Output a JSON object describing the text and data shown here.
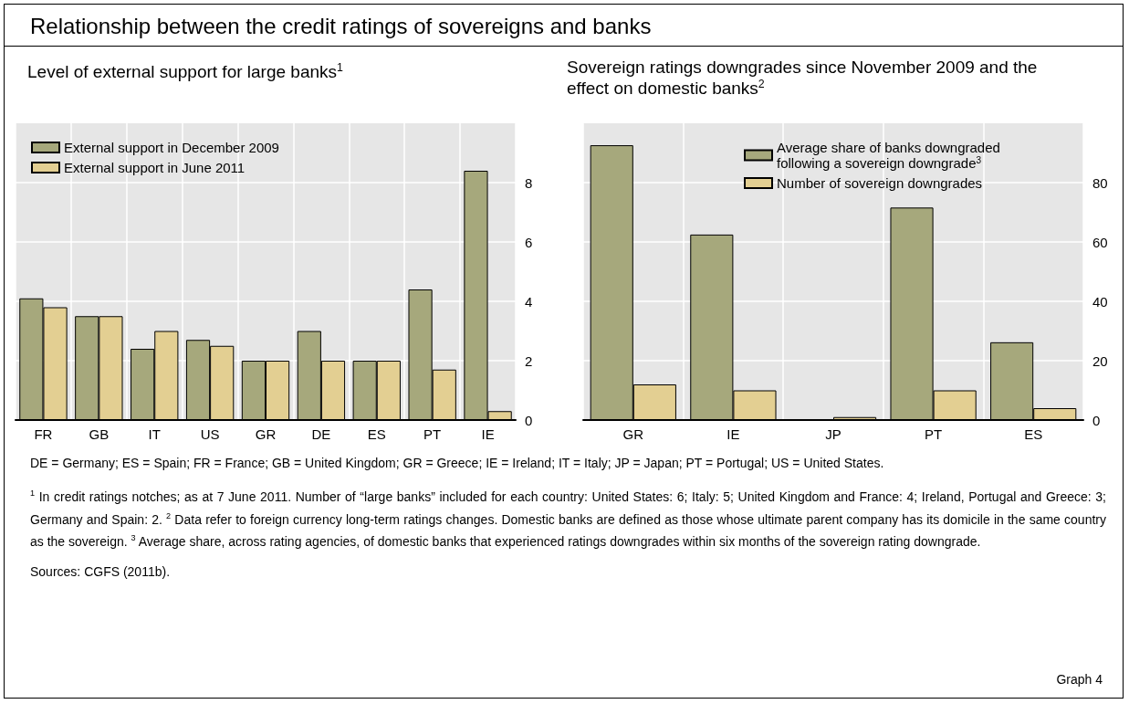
{
  "chart_data": [
    {
      "type": "bar",
      "title": "Relationship between the credit ratings of sovereigns and banks",
      "subtitle": "Level of external support for large banks$^{1}$",
      "categories": [
        "FR",
        "GB",
        "IT",
        "US",
        "GR",
        "DE",
        "ES",
        "PT",
        "IE"
      ],
      "series": [
        {
          "name": "External support in December 2009",
          "color": "#a6a87c",
          "values": [
            4.1,
            3.5,
            2.4,
            2.7,
            2,
            3,
            2,
            4.4,
            8.4
          ]
        },
        {
          "name": "External support in June 2011",
          "color": "#e3cf92",
          "values": [
            3.8,
            3.5,
            3,
            2.5,
            2,
            2,
            2,
            1.7,
            0.3
          ]
        }
      ],
      "ylim": [
        0,
        10
      ],
      "yticks": [
        0,
        2,
        4,
        6,
        8
      ],
      "grid": true,
      "legend": "top left"
    },
    {
      "type": "bar",
      "title": "Sovereign ratings downgrades since November 2009 and the effect on domestic banks$^{2}$",
      "categories": [
        "GR",
        "IE",
        "JP",
        "PT",
        "ES"
      ],
      "series": [
        {
          "name": "Average share of banks downgraded following a sovereign downgrade$^{3}$",
          "color": "#a6a87c",
          "values": [
            92.6,
            62.5,
            null,
            71.6,
            26.2
          ]
        },
        {
          "name": "Number of sovereign downgrades",
          "color": "#e3cf92",
          "values": [
            12,
            10,
            1,
            10,
            4
          ]
        }
      ],
      "ylim": [
        0,
        100
      ],
      "yticks": [
        0,
        20,
        40,
        60,
        80
      ],
      "grid": true,
      "legend": "top",
      "annotations": [
        "DE = Germany;  ES = Spain;  FR = France;  GB = United Kingdom;  GR = Greece;  IE = Ireland;  IT = Italy;  JP = Japan;  PT = Portugal; US = United States.",
        "$^{1}$ In credit ratings notches; as at 7 June 2011. Number of “large banks” included for each country: United States: 6; Italy: 5; United Kingdom and France: 4; Ireland, Portugal and Greece: 3; Germany and Spain: 2.  $^{2}$ Data refer to foreign currency long-term ratings changes. Domestic banks are defined as those whose ultimate parent company has its domicile in the same country as the sovereign.  $^{3}$ Average share, across rating agencies, of domestic banks that experienced ratings downgrades within six months of the sovereign rating downgrade.",
        "Sources: CGFS (2011b).",
        "Graph 4"
      ]
    }
  ]
}
